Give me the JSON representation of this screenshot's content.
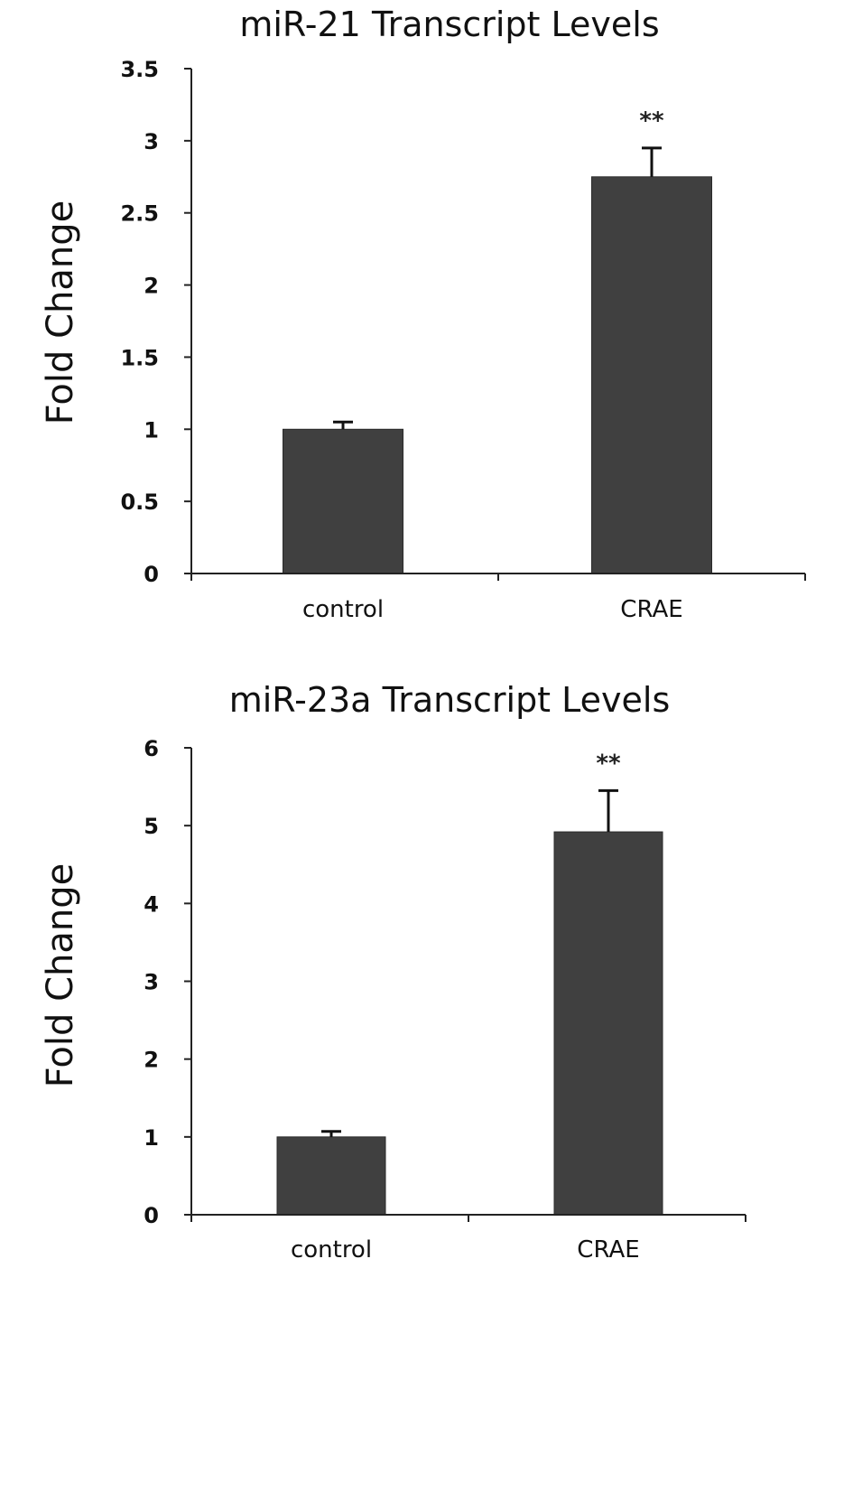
{
  "chart_data": [
    {
      "type": "bar",
      "title": "miR-21 Transcript Levels",
      "xlabel": "",
      "ylabel": "Fold Change",
      "categories": [
        "control",
        "CRAE"
      ],
      "values": [
        1.0,
        2.75
      ],
      "errors": [
        0.05,
        0.2
      ],
      "annotations": [
        "",
        "**"
      ],
      "ylim": [
        0,
        3.5
      ],
      "yticks": [
        0,
        0.5,
        1,
        1.5,
        2,
        2.5,
        3,
        3.5
      ],
      "ytick_labels": [
        "0",
        "0.5",
        "1",
        "1.5",
        "2",
        "2.5",
        "3",
        "3.5"
      ],
      "bar_color": "#404040",
      "grid": false
    },
    {
      "type": "bar",
      "title": "miR-23a Transcript Levels",
      "xlabel": "",
      "ylabel": "Fold Change",
      "categories": [
        "control",
        "CRAE"
      ],
      "values": [
        1.0,
        4.92
      ],
      "errors": [
        0.07,
        0.53
      ],
      "annotations": [
        "",
        "**"
      ],
      "ylim": [
        0,
        6
      ],
      "yticks": [
        0,
        1,
        2,
        3,
        4,
        5,
        6
      ],
      "ytick_labels": [
        "0",
        "1",
        "2",
        "3",
        "4",
        "5",
        "6"
      ],
      "bar_color": "#404040",
      "grid": false
    }
  ]
}
